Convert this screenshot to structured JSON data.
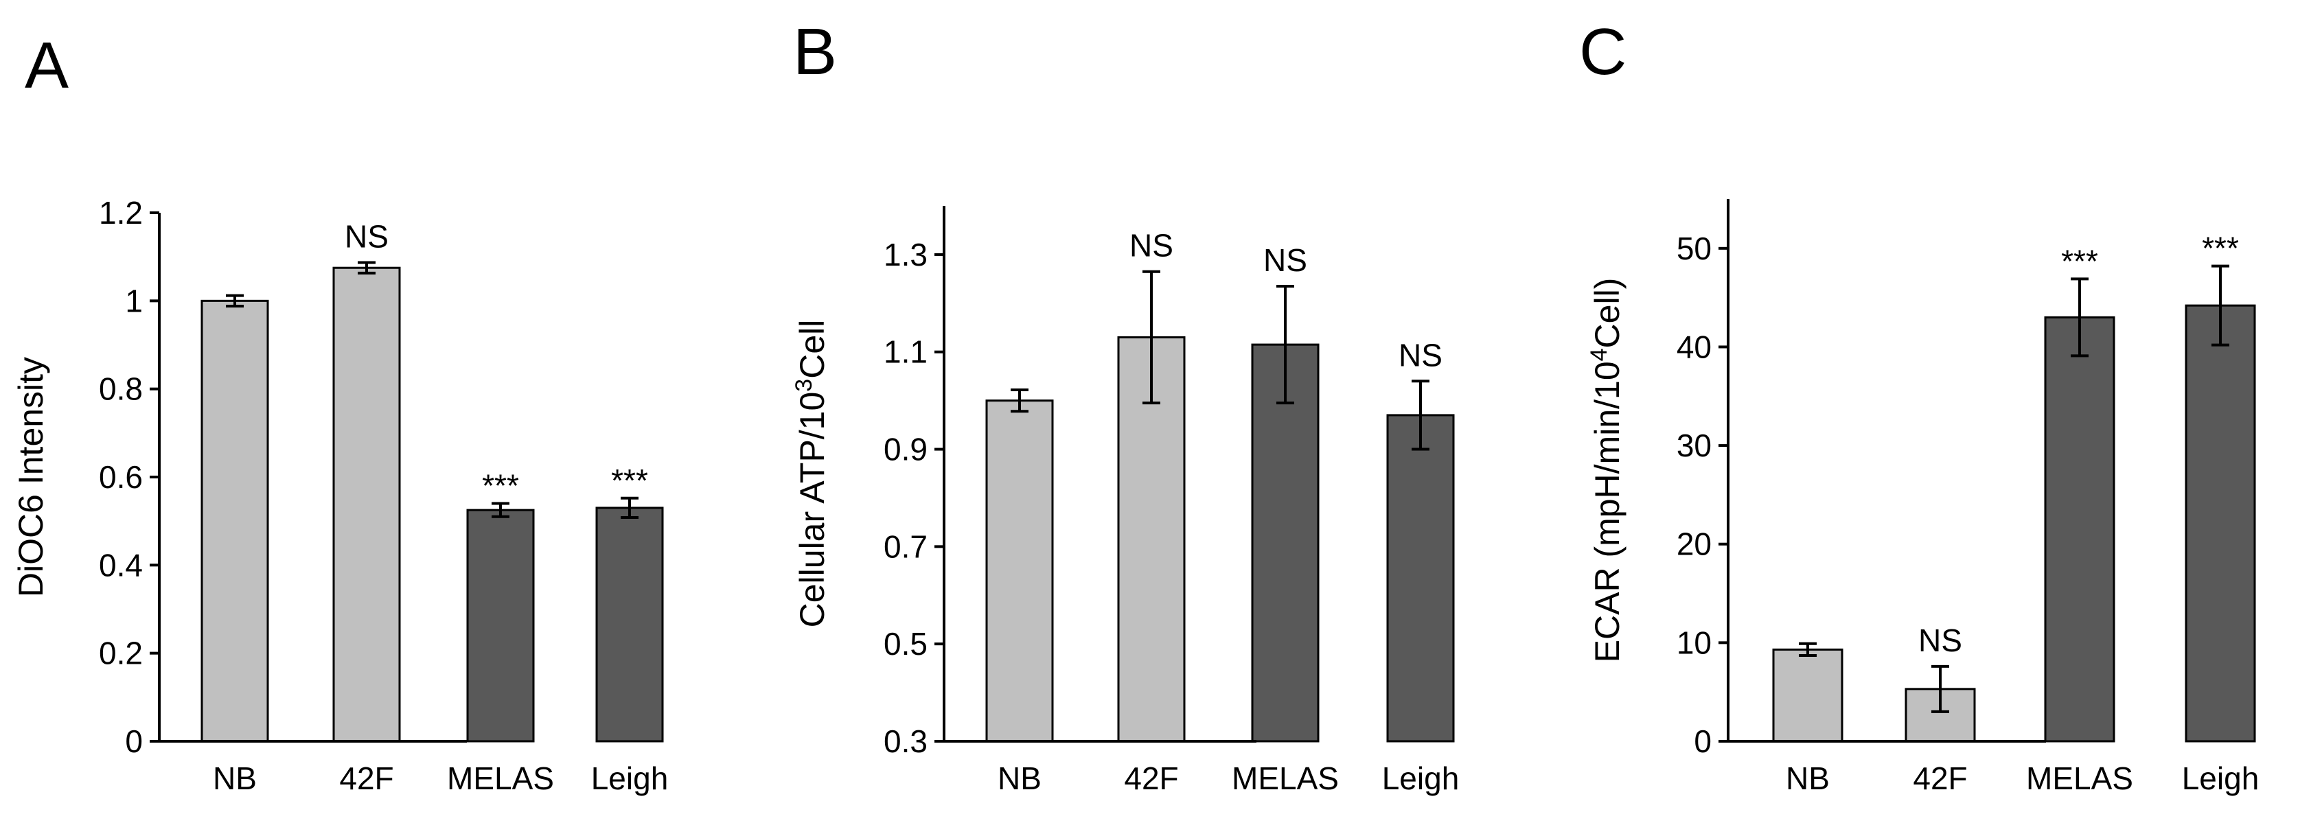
{
  "chart_data": [
    {
      "panel": "A",
      "type": "bar",
      "ylabel": "DiOC6  Intensity",
      "ylabel_sup": "",
      "ylabel_tail": "",
      "categories": [
        "NB",
        "42F",
        "MELAS",
        "Leigh"
      ],
      "values": [
        1.0,
        1.075,
        0.525,
        0.53
      ],
      "errors": [
        0.012,
        0.012,
        0.015,
        0.022
      ],
      "groups": [
        "control",
        "control",
        "patient",
        "patient"
      ],
      "significance": [
        "",
        "NS",
        "***",
        "***"
      ],
      "ylim": [
        0,
        1.2
      ],
      "yticks": [
        0,
        0.2,
        0.4,
        0.6,
        0.8,
        1.0,
        1.2
      ],
      "ytick_labels": [
        "0",
        "0.2",
        "0.4",
        "0.6",
        "0.8",
        "1",
        "1.2"
      ]
    },
    {
      "panel": "B",
      "type": "bar",
      "ylabel": "Cellular ATP/10",
      "ylabel_sup": "3",
      "ylabel_tail": "Cell",
      "categories": [
        "NB",
        "42F",
        "MELAS",
        "Leigh"
      ],
      "values": [
        1.0,
        1.13,
        1.115,
        0.97
      ],
      "errors": [
        0.022,
        0.135,
        0.12,
        0.07
      ],
      "groups": [
        "control",
        "control",
        "patient",
        "patient"
      ],
      "significance": [
        "",
        "NS",
        "NS",
        "NS"
      ],
      "ylim": [
        0.3,
        1.4
      ],
      "yticks": [
        0.3,
        0.5,
        0.7,
        0.9,
        1.1,
        1.3
      ],
      "ytick_labels": [
        "0.3",
        "0.5",
        "0.7",
        "0.9",
        "1.1",
        "1.3"
      ]
    },
    {
      "panel": "C",
      "type": "bar",
      "ylabel": "ECAR (mpH/min/10",
      "ylabel_sup": "4",
      "ylabel_tail": "Cell)",
      "categories": [
        "NB",
        "42F",
        "MELAS",
        "Leigh"
      ],
      "values": [
        9.3,
        5.3,
        43.0,
        44.2
      ],
      "errors": [
        0.6,
        2.3,
        3.9,
        4.0
      ],
      "groups": [
        "control",
        "control",
        "patient",
        "patient"
      ],
      "significance": [
        "",
        "NS",
        "***",
        "***"
      ],
      "ylim": [
        0,
        55
      ],
      "yticks": [
        0,
        10,
        20,
        30,
        40,
        50
      ],
      "ytick_labels": [
        "0",
        "10",
        "20",
        "30",
        "40",
        "50"
      ]
    }
  ],
  "colors": {
    "control": "#c0c0c0",
    "patient": "#595959",
    "axis": "#000000"
  }
}
